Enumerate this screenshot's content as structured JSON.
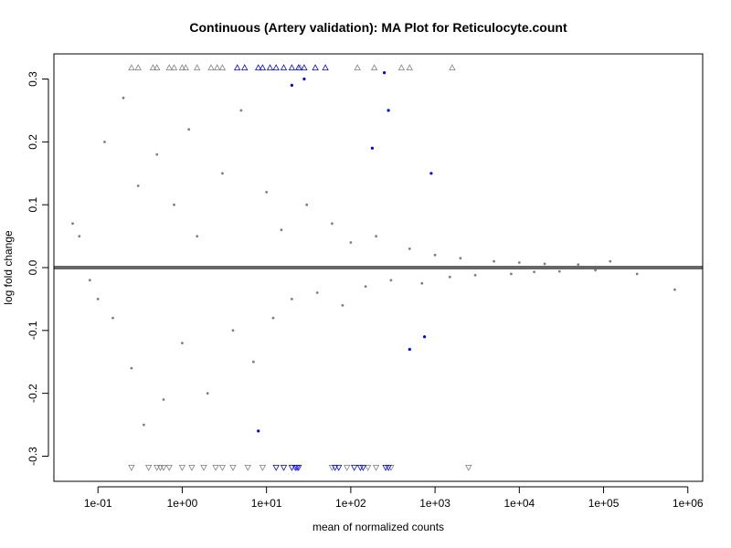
{
  "chart_data": {
    "type": "scatter",
    "title": "Continuous (Artery validation): MA Plot for Reticulocyte.count",
    "xlabel": "mean of normalized counts",
    "ylabel": "log fold change",
    "x_scale": "log10",
    "xlim": [
      0.03,
      1500000
    ],
    "ylim": [
      -0.34,
      0.34
    ],
    "x_ticks": [
      {
        "value": 0.1,
        "label": "1e-01"
      },
      {
        "value": 1,
        "label": "1e+00"
      },
      {
        "value": 10,
        "label": "1e+01"
      },
      {
        "value": 100,
        "label": "1e+02"
      },
      {
        "value": 1000,
        "label": "1e+03"
      },
      {
        "value": 10000,
        "label": "1e+04"
      },
      {
        "value": 100000,
        "label": "1e+05"
      },
      {
        "value": 1000000,
        "label": "1e+06"
      }
    ],
    "y_ticks": [
      {
        "value": 0.3,
        "label": "0.3"
      },
      {
        "value": 0.2,
        "label": "0.2"
      },
      {
        "value": 0.1,
        "label": "0.1"
      },
      {
        "value": 0.0,
        "label": "0.0"
      },
      {
        "value": -0.1,
        "label": "-0.1"
      },
      {
        "value": -0.2,
        "label": "-0.2"
      },
      {
        "value": -0.3,
        "label": "-0.3"
      }
    ],
    "reference_line": {
      "y": 0,
      "color": "#666666"
    },
    "grid": false,
    "colors": {
      "non_significant": "#7f7f7f",
      "significant": "#0000ff",
      "out_of_range_marker": "#7f7f7f"
    },
    "series": [
      {
        "points": [
          [
            0.05,
            0.07
          ],
          [
            0.06,
            0.05
          ],
          [
            0.08,
            -0.02
          ],
          [
            0.1,
            -0.05
          ],
          [
            0.12,
            0.2
          ],
          [
            0.15,
            -0.08
          ],
          [
            0.2,
            0.27
          ],
          [
            0.25,
            -0.16
          ],
          [
            0.3,
            0.13
          ],
          [
            0.35,
            -0.25
          ],
          [
            0.5,
            0.18
          ],
          [
            0.6,
            -0.21
          ],
          [
            0.8,
            0.1
          ],
          [
            1.0,
            -0.12
          ],
          [
            1.2,
            0.22
          ],
          [
            1.5,
            0.05
          ],
          [
            2,
            -0.2
          ],
          [
            3,
            0.15
          ],
          [
            4,
            -0.1
          ],
          [
            5,
            0.25
          ],
          [
            7,
            -0.15
          ],
          [
            10,
            0.12
          ],
          [
            12,
            -0.08
          ],
          [
            15,
            0.06
          ],
          [
            20,
            -0.05
          ],
          [
            30,
            0.1
          ],
          [
            40,
            -0.04
          ],
          [
            60,
            0.07
          ],
          [
            80,
            -0.06
          ],
          [
            100,
            0.04
          ],
          [
            150,
            -0.03
          ],
          [
            200,
            0.05
          ],
          [
            300,
            -0.02
          ],
          [
            500,
            0.03
          ],
          [
            700,
            -0.025
          ],
          [
            1000,
            0.02
          ],
          [
            1500,
            -0.015
          ],
          [
            2000,
            0.015
          ],
          [
            3000,
            -0.012
          ],
          [
            5000,
            0.01
          ],
          [
            8000,
            -0.01
          ],
          [
            10000,
            0.008
          ],
          [
            15000,
            -0.007
          ],
          [
            20000,
            0.006
          ],
          [
            30000,
            -0.006
          ],
          [
            50000,
            0.005
          ],
          [
            80000,
            -0.004
          ],
          [
            120000,
            0.01
          ],
          [
            250000,
            -0.01
          ],
          [
            700000,
            -0.035
          ]
        ]
      },
      {
        "name": "",
        "points": [
          [
            8,
            -0.26
          ],
          [
            20,
            0.29
          ],
          [
            28,
            0.3
          ],
          [
            180,
            0.19
          ],
          [
            250,
            0.31
          ],
          [
            280,
            0.25
          ],
          [
            500,
            -0.13
          ],
          [
            750,
            -0.11
          ],
          [
            900,
            0.15
          ]
        ]
      }
    ],
    "clipped_markers": {
      "top_y": 0.318,
      "bottom_y": -0.318,
      "top_grey_x": [
        0.25,
        0.3,
        0.45,
        0.5,
        0.7,
        0.8,
        1.0,
        1.1,
        1.5,
        2.2,
        2.6,
        3.0,
        25,
        120,
        190,
        400,
        500,
        1600
      ],
      "top_blue_x": [
        4.5,
        5.5,
        8,
        9,
        11,
        13,
        16,
        20,
        24,
        28,
        38,
        50
      ],
      "bottom_grey_x": [
        0.25,
        0.4,
        0.5,
        0.55,
        0.6,
        0.7,
        1.0,
        1.3,
        1.8,
        2.5,
        3.0,
        4.0,
        6,
        9,
        60,
        90,
        160,
        200,
        300,
        2500
      ],
      "bottom_blue_x": [
        13,
        16,
        20,
        22,
        23,
        24,
        65,
        72,
        110,
        130,
        140,
        260,
        280
      ]
    }
  }
}
